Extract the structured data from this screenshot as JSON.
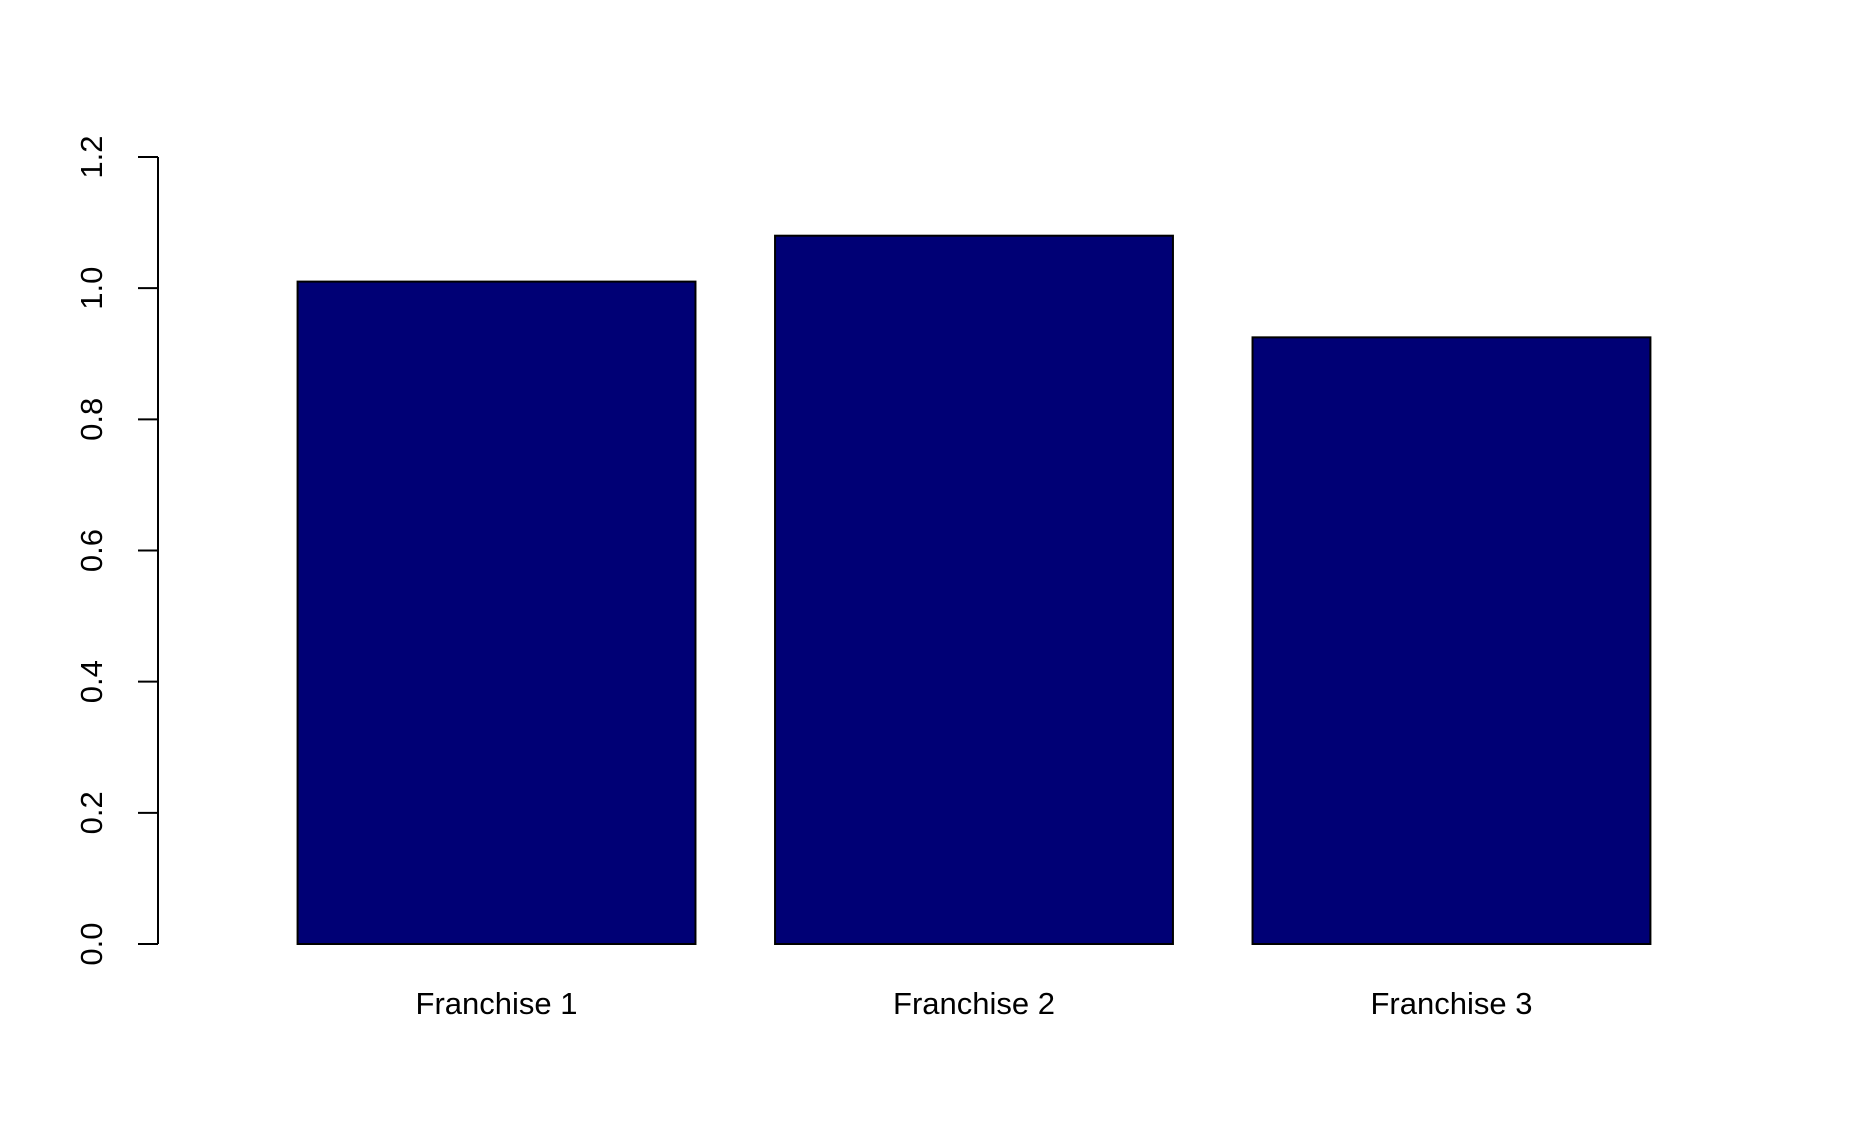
{
  "chart_data": {
    "type": "bar",
    "title": "",
    "xlabel": "",
    "ylabel": "",
    "categories": [
      "Franchise 1",
      "Franchise 2",
      "Franchise 3"
    ],
    "values": [
      1.01,
      1.08,
      0.925
    ],
    "ylim": [
      0,
      1.2
    ],
    "yticks": [
      0.0,
      0.2,
      0.4,
      0.6,
      0.8,
      1.0,
      1.2
    ],
    "ytick_labels": [
      "0.0",
      "0.2",
      "0.4",
      "0.6",
      "0.8",
      "1.0",
      "1.2"
    ],
    "grid": false,
    "colors": {
      "bar_fill": "#000075",
      "bar_stroke": "#000000",
      "axis": "#000000"
    }
  }
}
